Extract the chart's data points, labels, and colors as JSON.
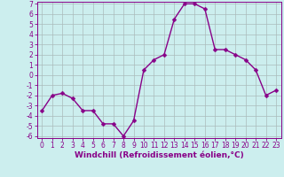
{
  "xlabel": "Windchill (Refroidissement éolien,°C)",
  "hours": [
    0,
    1,
    2,
    3,
    4,
    5,
    6,
    7,
    8,
    9,
    10,
    11,
    12,
    13,
    14,
    15,
    16,
    17,
    18,
    19,
    20,
    21,
    22,
    23
  ],
  "values": [
    -3.5,
    -2.0,
    -1.8,
    -2.3,
    -3.5,
    -3.5,
    -4.8,
    -4.8,
    -6.0,
    -4.5,
    0.5,
    1.5,
    2.0,
    5.5,
    7.0,
    7.0,
    6.5,
    2.5,
    2.5,
    2.0,
    1.5,
    0.5,
    -2.0,
    -1.5
  ],
  "line_color": "#880088",
  "marker_color": "#880088",
  "bg_color": "#cceeee",
  "grid_color": "#aabbbb",
  "ylim": [
    -6,
    7
  ],
  "xlim": [
    -0.5,
    23.5
  ],
  "yticks": [
    -6,
    -5,
    -4,
    -3,
    -2,
    -1,
    0,
    1,
    2,
    3,
    4,
    5,
    6,
    7
  ],
  "xticks": [
    0,
    1,
    2,
    3,
    4,
    5,
    6,
    7,
    8,
    9,
    10,
    11,
    12,
    13,
    14,
    15,
    16,
    17,
    18,
    19,
    20,
    21,
    22,
    23
  ],
  "xlabel_fontsize": 6.5,
  "tick_fontsize": 5.5,
  "marker_size": 2.5,
  "line_width": 1.0,
  "spine_color": "#880088"
}
